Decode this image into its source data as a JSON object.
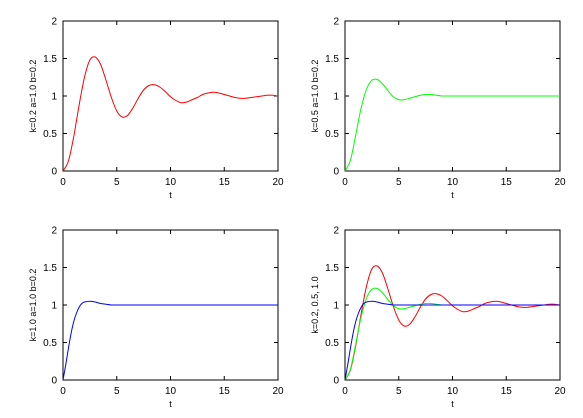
{
  "chart_data": [
    {
      "type": "line",
      "title": "",
      "xlabel": "t",
      "ylabel": "k=0.2 a=1.0 b=0.2",
      "xlim": [
        0,
        20
      ],
      "ylim": [
        0,
        2
      ],
      "xticks": [
        "0",
        "5",
        "10",
        "15",
        "20"
      ],
      "yticks": [
        "0",
        "0.5",
        "1",
        "1.5",
        "2"
      ],
      "grid": false,
      "series": [
        {
          "color": "#ff0000",
          "x": [
            0,
            0.5,
            1,
            1.5,
            2,
            2.5,
            3,
            3.5,
            4,
            4.5,
            5,
            5.5,
            6,
            6.5,
            7,
            7.5,
            8,
            8.5,
            9,
            9.5,
            10,
            10.5,
            11,
            11.5,
            12,
            12.5,
            13,
            13.5,
            14,
            14.5,
            15,
            15.5,
            16,
            16.5,
            17,
            17.5,
            18,
            18.5,
            19,
            19.5,
            20
          ],
          "y": [
            0,
            0.13,
            0.46,
            0.88,
            1.25,
            1.48,
            1.52,
            1.42,
            1.21,
            0.98,
            0.8,
            0.72,
            0.74,
            0.84,
            0.97,
            1.08,
            1.14,
            1.15,
            1.12,
            1.06,
            0.99,
            0.94,
            0.91,
            0.92,
            0.95,
            0.98,
            1.02,
            1.04,
            1.05,
            1.04,
            1.02,
            1.0,
            0.98,
            0.97,
            0.97,
            0.98,
            0.99,
            1.0,
            1.01,
            1.01,
            1.0
          ]
        }
      ]
    },
    {
      "type": "line",
      "title": "",
      "xlabel": "t",
      "ylabel": "k=0.5 a=1.0 b=0.2",
      "xlim": [
        0,
        20
      ],
      "ylim": [
        0,
        2
      ],
      "xticks": [
        "0",
        "5",
        "10",
        "15",
        "20"
      ],
      "yticks": [
        "0",
        "0.5",
        "1",
        "1.5",
        "2"
      ],
      "grid": false,
      "series": [
        {
          "color": "#00ff00",
          "x": [
            0,
            0.5,
            1,
            1.5,
            2,
            2.5,
            3,
            3.5,
            4,
            4.5,
            5,
            5.5,
            6,
            6.5,
            7,
            7.5,
            8,
            8.5,
            9,
            9.5,
            10,
            11,
            12,
            13,
            14,
            15,
            16,
            17,
            18,
            19,
            20
          ],
          "y": [
            0,
            0.14,
            0.48,
            0.84,
            1.09,
            1.21,
            1.22,
            1.16,
            1.07,
            0.99,
            0.95,
            0.95,
            0.97,
            0.99,
            1.01,
            1.02,
            1.02,
            1.01,
            1.0,
            1.0,
            1.0,
            1.0,
            1.0,
            1.0,
            1.0,
            1.0,
            1.0,
            1.0,
            1.0,
            1.0,
            1.0
          ]
        }
      ]
    },
    {
      "type": "line",
      "title": "",
      "xlabel": "t",
      "ylabel": "k=1.0 a=1.0 b=0.2",
      "xlim": [
        0,
        20
      ],
      "ylim": [
        0,
        2
      ],
      "xticks": [
        "0",
        "5",
        "10",
        "15",
        "20"
      ],
      "yticks": [
        "0",
        "0.5",
        "1",
        "1.5",
        "2"
      ],
      "grid": false,
      "series": [
        {
          "color": "#0000ff",
          "x": [
            0,
            0.25,
            0.5,
            0.75,
            1,
            1.25,
            1.5,
            1.75,
            2,
            2.5,
            3,
            3.5,
            4,
            4.5,
            5,
            6,
            8,
            10,
            12,
            14,
            16,
            18,
            20
          ],
          "y": [
            0,
            0.2,
            0.42,
            0.62,
            0.78,
            0.89,
            0.97,
            1.02,
            1.04,
            1.05,
            1.04,
            1.02,
            1.01,
            1.0,
            1.0,
            1.0,
            1.0,
            1.0,
            1.0,
            1.0,
            1.0,
            1.0,
            1.0
          ]
        }
      ]
    },
    {
      "type": "line",
      "title": "",
      "xlabel": "t",
      "ylabel": "k=0.2, 0.5, 1.0",
      "xlim": [
        0,
        20
      ],
      "ylim": [
        0,
        2
      ],
      "xticks": [
        "0",
        "5",
        "10",
        "15",
        "20"
      ],
      "yticks": [
        "0",
        "0.5",
        "1",
        "1.5",
        "2"
      ],
      "grid": false,
      "series": [
        {
          "color": "#ff0000",
          "x": [
            0,
            0.5,
            1,
            1.5,
            2,
            2.5,
            3,
            3.5,
            4,
            4.5,
            5,
            5.5,
            6,
            6.5,
            7,
            7.5,
            8,
            8.5,
            9,
            9.5,
            10,
            10.5,
            11,
            11.5,
            12,
            12.5,
            13,
            13.5,
            14,
            14.5,
            15,
            15.5,
            16,
            16.5,
            17,
            17.5,
            18,
            18.5,
            19,
            19.5,
            20
          ],
          "y": [
            0,
            0.13,
            0.46,
            0.88,
            1.25,
            1.48,
            1.52,
            1.42,
            1.21,
            0.98,
            0.8,
            0.72,
            0.74,
            0.84,
            0.97,
            1.08,
            1.14,
            1.15,
            1.12,
            1.06,
            0.99,
            0.94,
            0.91,
            0.92,
            0.95,
            0.98,
            1.02,
            1.04,
            1.05,
            1.04,
            1.02,
            1.0,
            0.98,
            0.97,
            0.97,
            0.98,
            0.99,
            1.0,
            1.01,
            1.01,
            1.0
          ]
        },
        {
          "color": "#00ff00",
          "x": [
            0,
            0.5,
            1,
            1.5,
            2,
            2.5,
            3,
            3.5,
            4,
            4.5,
            5,
            5.5,
            6,
            6.5,
            7,
            7.5,
            8,
            8.5,
            9,
            9.5,
            10,
            11,
            12,
            13,
            14,
            15,
            16,
            17,
            18,
            19,
            20
          ],
          "y": [
            0,
            0.14,
            0.48,
            0.84,
            1.09,
            1.21,
            1.22,
            1.16,
            1.07,
            0.99,
            0.95,
            0.95,
            0.97,
            0.99,
            1.01,
            1.02,
            1.02,
            1.01,
            1.0,
            1.0,
            1.0,
            1.0,
            1.0,
            1.0,
            1.0,
            1.0,
            1.0,
            1.0,
            1.0,
            1.0,
            1.0
          ]
        },
        {
          "color": "#0000ff",
          "x": [
            0,
            0.25,
            0.5,
            0.75,
            1,
            1.25,
            1.5,
            1.75,
            2,
            2.5,
            3,
            3.5,
            4,
            4.5,
            5,
            6,
            8,
            10,
            12,
            14,
            16,
            18,
            20
          ],
          "y": [
            0,
            0.2,
            0.42,
            0.62,
            0.78,
            0.89,
            0.97,
            1.02,
            1.04,
            1.05,
            1.04,
            1.02,
            1.01,
            1.0,
            1.0,
            1.0,
            1.0,
            1.0,
            1.0,
            1.0,
            1.0,
            1.0,
            1.0
          ]
        }
      ]
    }
  ]
}
